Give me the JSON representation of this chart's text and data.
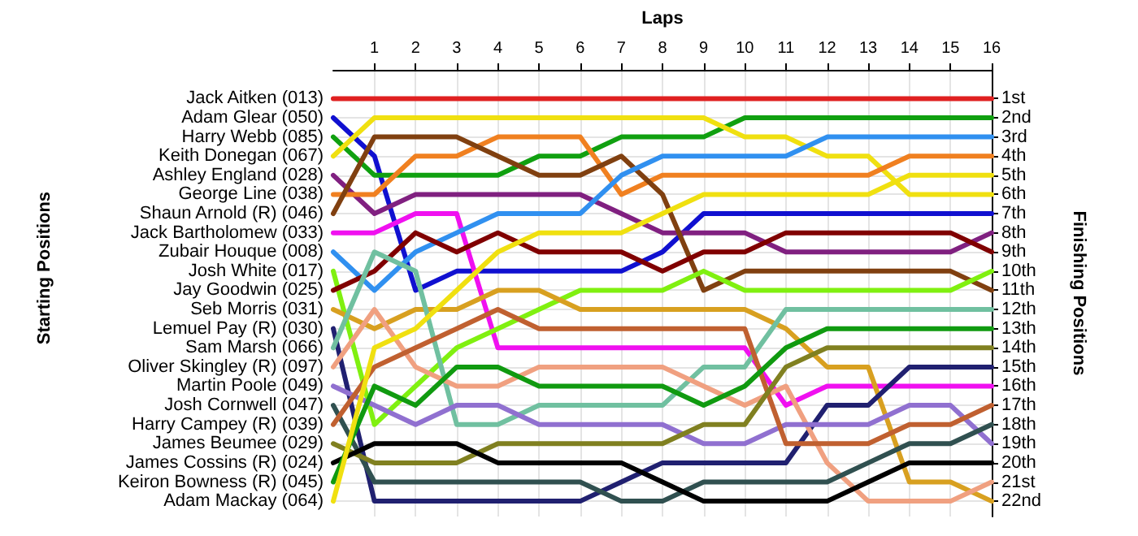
{
  "chart_data": {
    "type": "line",
    "xlabel": "Laps",
    "ylabel": "Finishing Positions",
    "annotations": [
      "Starting Positions"
    ],
    "legend": "left",
    "x": [
      0,
      1,
      2,
      3,
      4,
      5,
      6,
      7,
      8,
      9,
      10,
      11,
      12,
      13,
      14,
      15,
      16
    ],
    "xlim": [
      0,
      16
    ],
    "xticks": [
      1,
      2,
      3,
      4,
      5,
      6,
      7,
      8,
      9,
      10,
      11,
      12,
      13,
      14,
      15,
      16
    ],
    "ylim": [
      22.8,
      -0.5
    ],
    "yticks": [
      {
        "value": 1,
        "label": "1st"
      },
      {
        "value": 2,
        "label": "2nd"
      },
      {
        "value": 3,
        "label": "3rd"
      },
      {
        "value": 4,
        "label": "4th"
      },
      {
        "value": 5,
        "label": "5th"
      },
      {
        "value": 6,
        "label": "6th"
      },
      {
        "value": 7,
        "label": "7th"
      },
      {
        "value": 8,
        "label": "8th"
      },
      {
        "value": 9,
        "label": "9th"
      },
      {
        "value": 10,
        "label": "10th"
      },
      {
        "value": 11,
        "label": "11th"
      },
      {
        "value": 12,
        "label": "12th"
      },
      {
        "value": 13,
        "label": "13th"
      },
      {
        "value": 14,
        "label": "14th"
      },
      {
        "value": 15,
        "label": "15th"
      },
      {
        "value": 16,
        "label": "16th"
      },
      {
        "value": 17,
        "label": "17th"
      },
      {
        "value": 18,
        "label": "18th"
      },
      {
        "value": 19,
        "label": "19th"
      },
      {
        "value": 20,
        "label": "20th"
      },
      {
        "value": 21,
        "label": "21st"
      },
      {
        "value": 22,
        "label": "22nd"
      }
    ],
    "grid": true,
    "marker": "none",
    "line_style": "solid",
    "series": [
      {
        "name": "Jack Aitken (013)",
        "color": "#e02020",
        "values": [
          1,
          1,
          1,
          1,
          1,
          1,
          1,
          1,
          1,
          1,
          1,
          1,
          1,
          1,
          1,
          1,
          1
        ]
      },
      {
        "name": "Adam Glear (050)",
        "color": "#1010d0",
        "values": [
          2,
          4,
          11,
          10,
          10,
          10,
          10,
          10,
          9,
          7,
          7,
          7,
          7,
          7,
          7,
          7,
          7
        ]
      },
      {
        "name": "Harry Webb (085)",
        "color": "#10a010",
        "values": [
          3,
          5,
          5,
          5,
          5,
          4,
          4,
          3,
          3,
          3,
          2,
          2,
          2,
          2,
          2,
          2,
          2
        ]
      },
      {
        "name": "Keith Donegan (067)",
        "color": "#f0e010",
        "values": [
          4,
          2,
          2,
          2,
          2,
          2,
          2,
          2,
          2,
          2,
          3,
          3,
          4,
          4,
          6,
          6,
          6
        ]
      },
      {
        "name": "Ashley England (028)",
        "color": "#802080",
        "values": [
          5,
          7,
          6,
          6,
          6,
          6,
          6,
          7,
          8,
          8,
          8,
          9,
          9,
          9,
          9,
          9,
          8
        ]
      },
      {
        "name": "George Line (038)",
        "color": "#f08020",
        "values": [
          6,
          6,
          4,
          4,
          3,
          3,
          3,
          6,
          5,
          5,
          5,
          5,
          5,
          5,
          4,
          4,
          4
        ]
      },
      {
        "name": "Shaun Arnold (R) (046)",
        "color": "#804010",
        "values": [
          7,
          3,
          3,
          3,
          4,
          5,
          5,
          4,
          6,
          11,
          10,
          10,
          10,
          10,
          10,
          10,
          11
        ]
      },
      {
        "name": "Jack Bartholomew (033)",
        "color": "#f010f0",
        "values": [
          8,
          8,
          7,
          7,
          14,
          14,
          14,
          14,
          14,
          14,
          14,
          17,
          16,
          16,
          16,
          16,
          16
        ]
      },
      {
        "name": "Zubair Houque (008)",
        "color": "#3090f0",
        "values": [
          9,
          11,
          9,
          8,
          7,
          7,
          7,
          5,
          4,
          4,
          4,
          4,
          3,
          3,
          3,
          3,
          3
        ]
      },
      {
        "name": "Josh White (017)",
        "color": "#80f010",
        "values": [
          10,
          18,
          16,
          14,
          13,
          12,
          11,
          11,
          11,
          10,
          11,
          11,
          11,
          11,
          11,
          11,
          10
        ]
      },
      {
        "name": "Jay Goodwin (025)",
        "color": "#800000",
        "values": [
          11,
          10,
          8,
          9,
          8,
          9,
          9,
          9,
          10,
          9,
          9,
          8,
          8,
          8,
          8,
          8,
          9
        ]
      },
      {
        "name": "Seb Morris (031)",
        "color": "#d8a020",
        "values": [
          12,
          13,
          12,
          12,
          11,
          11,
          12,
          12,
          12,
          12,
          12,
          13,
          15,
          15,
          21,
          21,
          22
        ]
      },
      {
        "name": "Lemuel Pay (R) (030)",
        "color": "#202070",
        "values": [
          13,
          22,
          22,
          22,
          22,
          22,
          22,
          21,
          20,
          20,
          20,
          20,
          17,
          17,
          15,
          15,
          15
        ]
      },
      {
        "name": "Sam Marsh (066)",
        "color": "#70c0a0",
        "values": [
          14,
          9,
          10,
          18,
          18,
          17,
          17,
          17,
          17,
          15,
          15,
          12,
          12,
          12,
          12,
          12,
          12
        ]
      },
      {
        "name": "Oliver Skingley (R) (097)",
        "color": "#f0a080",
        "values": [
          15,
          12,
          15,
          16,
          16,
          15,
          15,
          15,
          15,
          16,
          17,
          16,
          20,
          22,
          22,
          22,
          21
        ]
      },
      {
        "name": "Martin Poole (049)",
        "color": "#9070d0",
        "values": [
          16,
          17,
          18,
          17,
          17,
          18,
          18,
          18,
          18,
          19,
          19,
          18,
          18,
          18,
          17,
          17,
          19
        ]
      },
      {
        "name": "Josh Cornwell (047)",
        "color": "#305050",
        "values": [
          17,
          21,
          21,
          21,
          21,
          21,
          21,
          22,
          22,
          21,
          21,
          21,
          21,
          20,
          19,
          19,
          18
        ]
      },
      {
        "name": "Harry Campey (R) (039)",
        "color": "#c06030",
        "values": [
          18,
          15,
          14,
          13,
          12,
          13,
          13,
          13,
          13,
          13,
          13,
          19,
          19,
          19,
          18,
          18,
          17
        ]
      },
      {
        "name": "James Beumee (029)",
        "color": "#808020",
        "values": [
          19,
          20,
          20,
          20,
          19,
          19,
          19,
          19,
          19,
          18,
          18,
          15,
          14,
          14,
          14,
          14,
          14
        ]
      },
      {
        "name": "James Cossins (R) (024)",
        "color": "#000000",
        "values": [
          20,
          19,
          19,
          19,
          20,
          20,
          20,
          20,
          21,
          22,
          22,
          22,
          22,
          21,
          20,
          20,
          20
        ]
      },
      {
        "name": "Keiron Bowness (R) (045)",
        "color": "#109a10",
        "values": [
          21,
          16,
          17,
          15,
          15,
          16,
          16,
          16,
          16,
          17,
          16,
          14,
          13,
          13,
          13,
          13,
          13
        ]
      },
      {
        "name": "Adam Mackay (064)",
        "color": "#f0e010",
        "values": [
          22,
          14,
          13,
          11,
          9,
          8,
          8,
          8,
          7,
          6,
          6,
          6,
          6,
          6,
          5,
          5,
          5
        ]
      }
    ]
  }
}
